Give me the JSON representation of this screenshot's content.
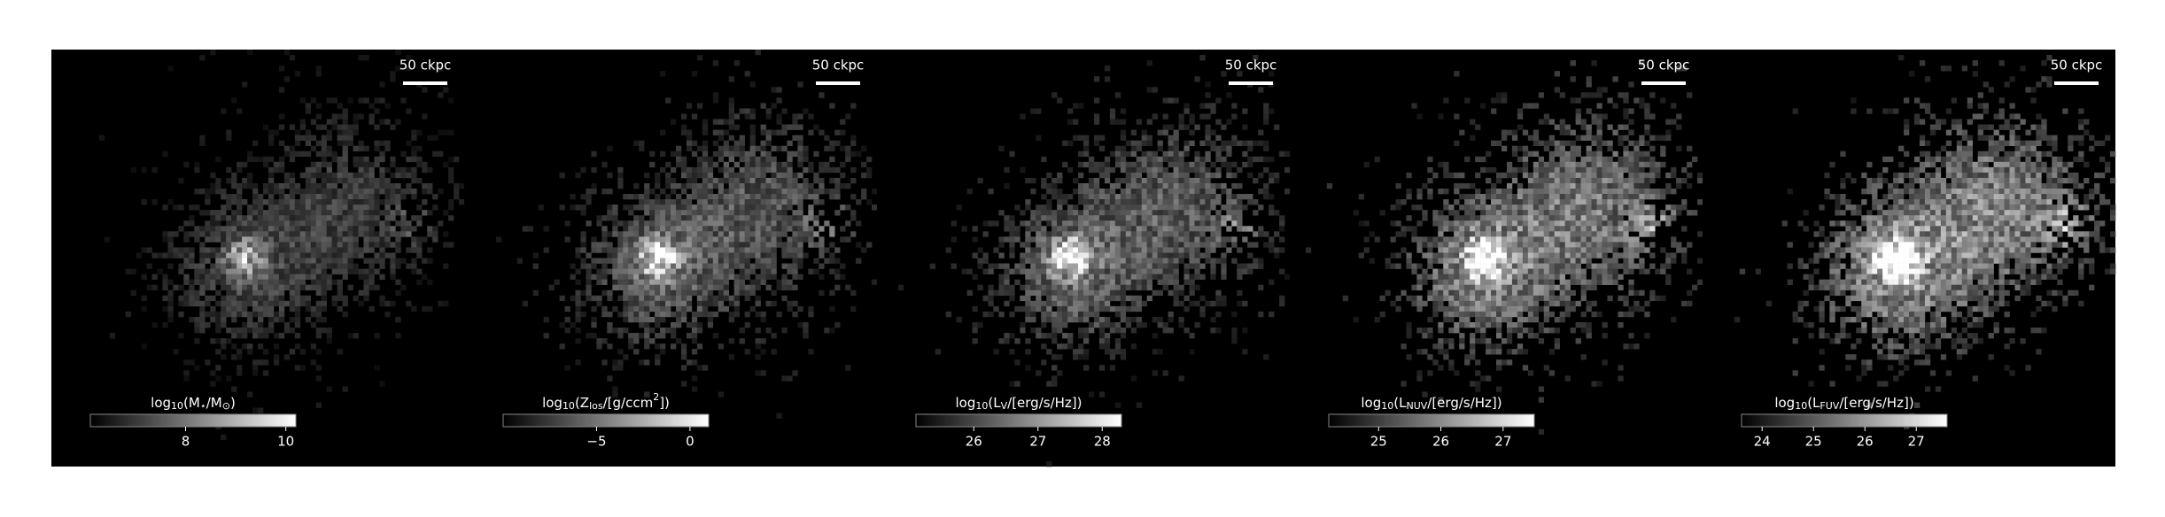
{
  "chart_data": [
    {
      "type": "image",
      "scalebar": "50 ckpc",
      "colorbar_label": [
        {
          "t": "log"
        },
        {
          "t": "10",
          "pos": "sub"
        },
        {
          "t": "(M"
        },
        {
          "t": "⋆",
          "pos": "sub"
        },
        {
          "t": "/M"
        },
        {
          "t": "⊙",
          "pos": "sub"
        },
        {
          "t": ")"
        }
      ],
      "clim": [
        6.1,
        10.2
      ],
      "cticks": [
        8,
        10
      ]
    },
    {
      "type": "image",
      "scalebar": "50 ckpc",
      "colorbar_label": [
        {
          "t": "log"
        },
        {
          "t": "10",
          "pos": "sub"
        },
        {
          "t": "(Z"
        },
        {
          "t": "los",
          "pos": "sub"
        },
        {
          "t": "/[g/ccm"
        },
        {
          "t": "2",
          "pos": "sup"
        },
        {
          "t": "])"
        }
      ],
      "clim": [
        -10,
        1
      ],
      "cticks": [
        {
          "value": -5,
          "label": "−5"
        },
        0
      ]
    },
    {
      "type": "image",
      "scalebar": "50 ckpc",
      "colorbar_label": [
        {
          "t": "log"
        },
        {
          "t": "10",
          "pos": "sub"
        },
        {
          "t": "(L"
        },
        {
          "t": "V",
          "pos": "sub"
        },
        {
          "t": "/[erg/s/Hz])"
        }
      ],
      "clim": [
        25.1,
        28.3
      ],
      "cticks": [
        26,
        27,
        28
      ]
    },
    {
      "type": "image",
      "scalebar": "50 ckpc",
      "colorbar_label": [
        {
          "t": "log"
        },
        {
          "t": "10",
          "pos": "sub"
        },
        {
          "t": "(L"
        },
        {
          "t": "NUV",
          "pos": "sub"
        },
        {
          "t": "/[erg/s/Hz])"
        }
      ],
      "clim": [
        24.2,
        27.5
      ],
      "cticks": [
        25,
        26,
        27
      ]
    },
    {
      "type": "image",
      "scalebar": "50 ckpc",
      "colorbar_label": [
        {
          "t": "log"
        },
        {
          "t": "10",
          "pos": "sub"
        },
        {
          "t": "(L"
        },
        {
          "t": "FUV",
          "pos": "sub"
        },
        {
          "t": "/[erg/s/Hz])"
        }
      ],
      "clim": [
        23.6,
        27.6
      ],
      "cticks": [
        24,
        25,
        26,
        27
      ]
    }
  ]
}
